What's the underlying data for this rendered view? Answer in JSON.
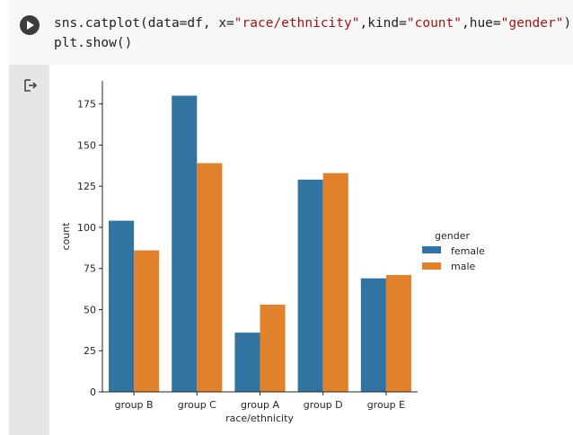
{
  "code": {
    "line1": {
      "p1": "sns.catplot(data=df, x=",
      "s1": "\"race/ethnicity\"",
      "p2": ",kind=",
      "s2": "\"count\"",
      "p3": ",hue=",
      "s3": "\"gender\"",
      "p4": ")"
    },
    "line2": "plt.show()"
  },
  "icons": {
    "run": "play-icon",
    "output": "output-arrow-icon"
  },
  "colors": {
    "female": "#3274a1",
    "male": "#e1812c"
  },
  "chart_data": {
    "type": "bar",
    "categories": [
      "group B",
      "group C",
      "group A",
      "group D",
      "group E"
    ],
    "series": [
      {
        "name": "female",
        "values": [
          104,
          180,
          36,
          129,
          69
        ]
      },
      {
        "name": "male",
        "values": [
          86,
          139,
          53,
          133,
          71
        ]
      }
    ],
    "xlabel": "race/ethnicity",
    "ylabel": "count",
    "ylim": [
      0,
      189
    ],
    "yticks": [
      0,
      25,
      50,
      75,
      100,
      125,
      150,
      175
    ],
    "legend": {
      "title": "gender",
      "placement": "right"
    },
    "grid": false
  }
}
